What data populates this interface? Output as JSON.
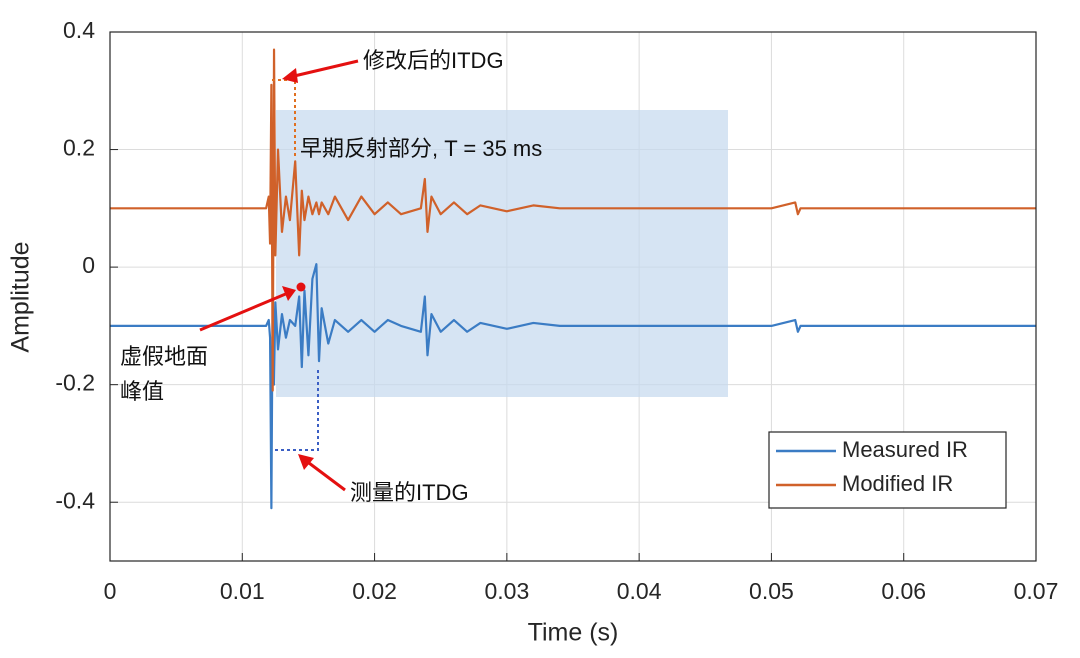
{
  "chart_data": {
    "type": "line",
    "x_label": "Time (s)",
    "y_label": "Amplitude",
    "annotations": [
      "修改后的ITDG",
      "早期反射部分, T = 35 ms",
      "虚假地面",
      "峰值",
      "测量的ITDG"
    ],
    "x": [
      0,
      0.005,
      0.01,
      0.0118,
      0.012,
      0.0121,
      0.0122,
      0.0123,
      0.0124,
      0.0125,
      0.0127,
      0.013,
      0.0133,
      0.0136,
      0.014,
      0.0143,
      0.0145,
      0.0147,
      0.015,
      0.0153,
      0.0156,
      0.0158,
      0.016,
      0.0165,
      0.017,
      0.018,
      0.019,
      0.02,
      0.021,
      0.022,
      0.0235,
      0.0238,
      0.024,
      0.0243,
      0.025,
      0.026,
      0.027,
      0.028,
      0.03,
      0.032,
      0.034,
      0.036,
      0.04,
      0.045,
      0.05,
      0.0518,
      0.052,
      0.0522,
      0.055,
      0.06,
      0.065,
      0.07
    ],
    "series": [
      {
        "name": "Measured IR",
        "color": "#3b7cc4",
        "values": [
          -0.1,
          -0.1,
          -0.1,
          -0.1,
          -0.09,
          -0.12,
          -0.41,
          -0.03,
          -0.2,
          -0.06,
          -0.14,
          -0.08,
          -0.12,
          -0.09,
          -0.1,
          -0.05,
          -0.17,
          -0.04,
          -0.15,
          -0.02,
          0.005,
          -0.16,
          -0.07,
          -0.13,
          -0.09,
          -0.11,
          -0.09,
          -0.11,
          -0.09,
          -0.1,
          -0.11,
          -0.05,
          -0.15,
          -0.08,
          -0.11,
          -0.09,
          -0.11,
          -0.095,
          -0.105,
          -0.095,
          -0.1,
          -0.1,
          -0.1,
          -0.1,
          -0.1,
          -0.09,
          -0.11,
          -0.1,
          -0.1,
          -0.1,
          -0.1,
          -0.1
        ]
      },
      {
        "name": "Modified IR",
        "color": "#d0612a",
        "values": [
          0.1,
          0.1,
          0.1,
          0.1,
          0.12,
          0.04,
          0.31,
          -0.21,
          0.37,
          0.02,
          0.2,
          0.06,
          0.12,
          0.08,
          0.18,
          0.02,
          0.13,
          0.08,
          0.12,
          0.09,
          0.11,
          0.09,
          0.11,
          0.09,
          0.12,
          0.08,
          0.12,
          0.09,
          0.11,
          0.09,
          0.1,
          0.15,
          0.06,
          0.12,
          0.09,
          0.11,
          0.09,
          0.105,
          0.095,
          0.105,
          0.1,
          0.1,
          0.1,
          0.1,
          0.1,
          0.11,
          0.09,
          0.1,
          0.1,
          0.1,
          0.1,
          0.1
        ]
      }
    ],
    "xlim": [
      0,
      0.07
    ],
    "xticks": [
      0,
      0.01,
      0.02,
      0.03,
      0.04,
      0.05,
      0.06,
      0.07
    ],
    "ylim": [
      -0.5,
      0.4
    ],
    "yticks": [
      -0.4,
      -0.2,
      0,
      0.2,
      0.4
    ],
    "grid": true,
    "legend": "lower right"
  }
}
